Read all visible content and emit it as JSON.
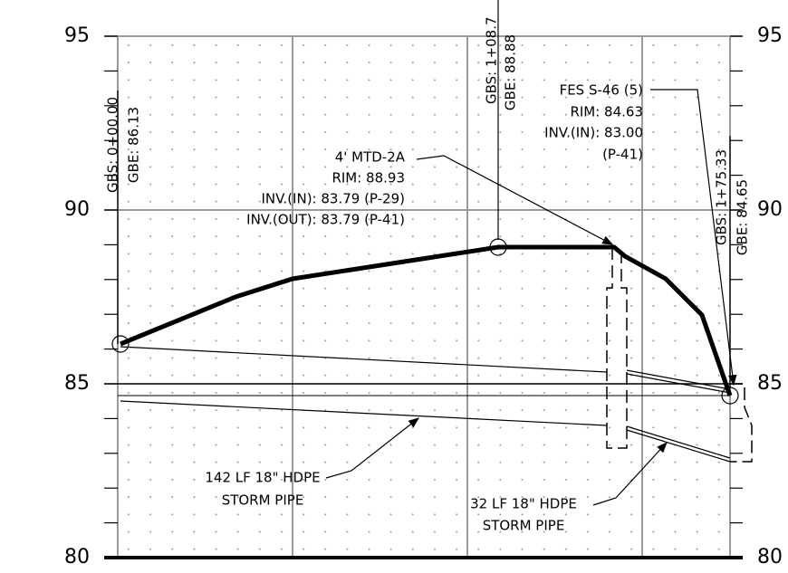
{
  "elevations_left": [
    "95",
    "90",
    "85",
    "80"
  ],
  "elevations_right": [
    "95",
    "90",
    "85",
    "80"
  ],
  "stations": [
    {
      "station": "GBS: 0+00.00",
      "elevation": "GBE: 86.13"
    },
    {
      "station": "GBS: 1+08.7",
      "elevation": "GBE: 88.88"
    },
    {
      "station": "GBS: 1+75.33",
      "elevation": "GBE: 84.65"
    }
  ],
  "callouts": [
    {
      "lines": [
        "4' MTD-2A",
        "RIM: 88.93",
        "INV.(IN): 83.79 (P-29)",
        "INV.(OUT): 83.79 (P-41)"
      ]
    },
    {
      "lines": [
        "FES S-46 (5)",
        "RIM: 84.63",
        "INV.(IN): 83.00",
        "(P-41)"
      ]
    },
    {
      "lines": [
        "142 LF 18\" HDPE",
        "STORM PIPE"
      ]
    },
    {
      "lines": [
        "32 LF 18\" HDPE",
        "STORM PIPE"
      ]
    }
  ]
}
